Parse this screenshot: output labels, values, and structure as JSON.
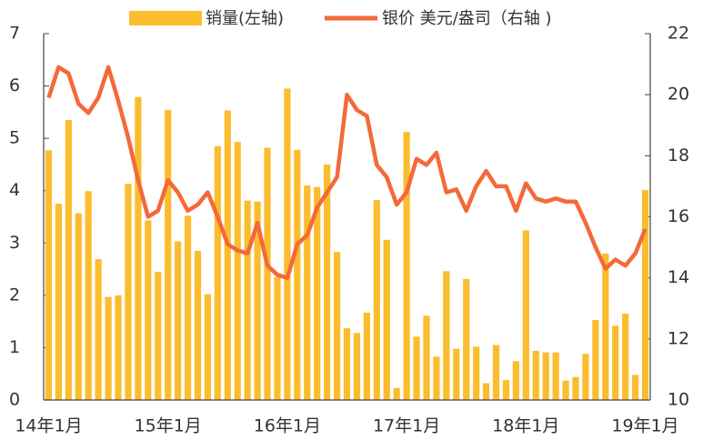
{
  "chart_data": {
    "type": "bar_line",
    "legend": [
      "销量(左轴)",
      "银价 美元/盎司（右轴 )"
    ],
    "categories": [
      "14年1月",
      null,
      null,
      null,
      null,
      null,
      null,
      null,
      null,
      null,
      null,
      null,
      "15年1月",
      null,
      null,
      null,
      null,
      null,
      null,
      null,
      null,
      null,
      null,
      null,
      "16年1月",
      null,
      null,
      null,
      null,
      null,
      null,
      null,
      null,
      null,
      null,
      null,
      "17年1月",
      null,
      null,
      null,
      null,
      null,
      null,
      null,
      null,
      null,
      null,
      null,
      "18年1月",
      null,
      null,
      null,
      null,
      null,
      null,
      null,
      null,
      null,
      null,
      null,
      "19年1月"
    ],
    "series": [
      {
        "name": "销量(左轴)",
        "type": "bar",
        "color": "#fbbd2e",
        "values": [
          4.77,
          3.75,
          5.35,
          3.57,
          3.99,
          2.69,
          1.97,
          2.0,
          4.13,
          5.79,
          3.43,
          2.45,
          5.54,
          3.03,
          3.52,
          2.85,
          2.02,
          4.85,
          5.53,
          4.93,
          3.81,
          3.79,
          4.82,
          2.35,
          5.95,
          4.78,
          4.1,
          4.07,
          4.5,
          2.83,
          1.37,
          1.28,
          1.67,
          3.82,
          3.06,
          0.23,
          5.12,
          1.21,
          1.61,
          0.83,
          2.46,
          0.98,
          2.31,
          1.02,
          0.32,
          1.05,
          0.38,
          0.74,
          3.24,
          0.94,
          0.91,
          0.91,
          0.37,
          0.44,
          0.88,
          1.53,
          2.8,
          1.42,
          1.65,
          0.48,
          4.01
        ]
      },
      {
        "name": "银价 美元/盎司（右轴 )",
        "type": "line",
        "axis": "y2",
        "color": "#f4693a",
        "values": [
          19.9,
          20.9,
          20.7,
          19.7,
          19.4,
          19.9,
          20.9,
          19.8,
          18.6,
          17.2,
          16.0,
          16.2,
          17.2,
          16.8,
          16.2,
          16.4,
          16.8,
          16.0,
          15.1,
          14.9,
          14.8,
          15.8,
          14.4,
          14.1,
          14.0,
          15.1,
          15.4,
          16.3,
          16.8,
          17.3,
          20.0,
          19.5,
          19.3,
          17.7,
          17.3,
          16.4,
          16.8,
          17.9,
          17.7,
          18.1,
          16.8,
          16.9,
          16.2,
          17.0,
          17.5,
          17.0,
          17.0,
          16.2,
          17.1,
          16.6,
          16.5,
          16.6,
          16.5,
          16.5,
          15.8,
          15.0,
          14.3,
          14.6,
          14.4,
          14.8,
          15.6
        ]
      }
    ],
    "ylim": [
      0,
      7
    ],
    "yticks": [
      0,
      1,
      2,
      3,
      4,
      5,
      6,
      7
    ],
    "y2lim": [
      10,
      22
    ],
    "y2ticks": [
      10,
      12,
      14,
      16,
      18,
      20,
      22
    ]
  }
}
